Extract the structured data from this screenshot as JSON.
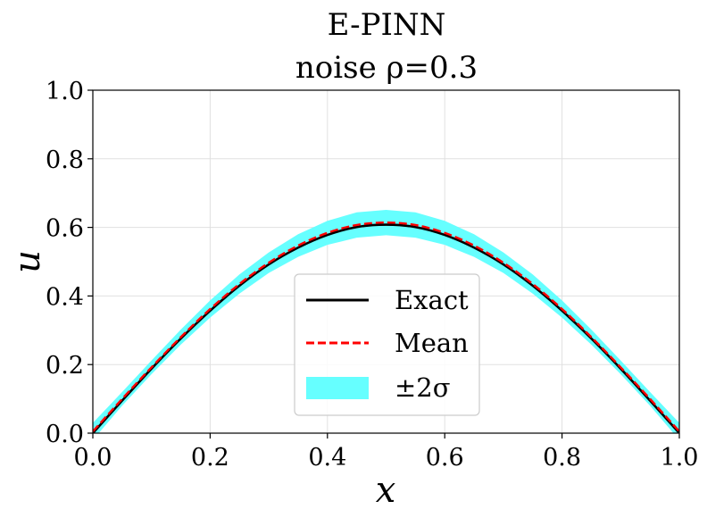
{
  "chart_data": {
    "type": "line",
    "title": "E-PINN",
    "subtitle": "noise ρ=0.3",
    "xlabel": "x",
    "ylabel": "u",
    "xlim": [
      0.0,
      1.0
    ],
    "ylim": [
      0.0,
      1.0
    ],
    "xticks": [
      "0.0",
      "0.2",
      "0.4",
      "0.6",
      "0.8",
      "1.0"
    ],
    "yticks": [
      "0.0",
      "0.2",
      "0.4",
      "0.6",
      "0.8",
      "1.0"
    ],
    "grid": true,
    "legend_position": "bottom-center",
    "x": [
      0.0,
      0.05,
      0.1,
      0.15,
      0.2,
      0.25,
      0.3,
      0.35,
      0.4,
      0.45,
      0.5,
      0.55,
      0.6,
      0.65,
      0.7,
      0.75,
      0.8,
      0.85,
      0.9,
      0.95,
      1.0
    ],
    "series": [
      {
        "name": "Exact",
        "style": "solid",
        "color": "#000000",
        "values": [
          0.0,
          0.095,
          0.188,
          0.276,
          0.357,
          0.43,
          0.492,
          0.541,
          0.578,
          0.601,
          0.608,
          0.601,
          0.578,
          0.541,
          0.492,
          0.43,
          0.357,
          0.276,
          0.188,
          0.095,
          0.0
        ]
      },
      {
        "name": "Mean",
        "style": "dashed",
        "color": "#ff0000",
        "values": [
          0.005,
          0.1,
          0.192,
          0.28,
          0.362,
          0.435,
          0.497,
          0.547,
          0.584,
          0.607,
          0.614,
          0.607,
          0.584,
          0.547,
          0.497,
          0.435,
          0.362,
          0.28,
          0.192,
          0.1,
          0.005
        ]
      },
      {
        "name": "±2σ",
        "style": "band",
        "color": "#66ffff",
        "lower": [
          -0.02,
          0.08,
          0.172,
          0.258,
          0.337,
          0.407,
          0.467,
          0.514,
          0.549,
          0.57,
          0.577,
          0.57,
          0.549,
          0.514,
          0.467,
          0.407,
          0.337,
          0.258,
          0.172,
          0.08,
          -0.02
        ],
        "upper": [
          0.03,
          0.12,
          0.212,
          0.302,
          0.387,
          0.463,
          0.527,
          0.58,
          0.619,
          0.644,
          0.651,
          0.644,
          0.619,
          0.58,
          0.527,
          0.463,
          0.387,
          0.302,
          0.212,
          0.12,
          0.03
        ]
      }
    ]
  }
}
